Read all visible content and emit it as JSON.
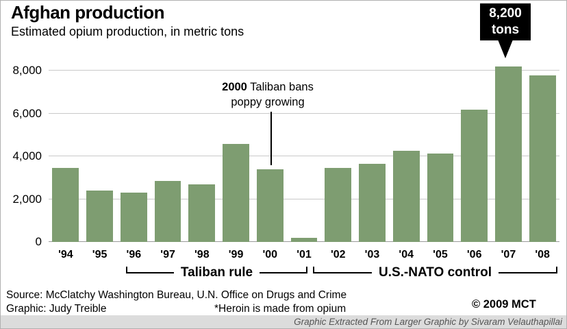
{
  "chart_data": {
    "type": "bar",
    "title": "Afghan production",
    "subtitle": "Estimated opium production, in metric tons",
    "categories": [
      "'94",
      "'95",
      "'96",
      "'97",
      "'98",
      "'99",
      "'00",
      "'01",
      "'02",
      "'03",
      "'04",
      "'05",
      "'06",
      "'07",
      "'08"
    ],
    "values": [
      3450,
      2400,
      2300,
      2850,
      2700,
      4600,
      3400,
      200,
      3450,
      3650,
      4250,
      4150,
      6200,
      8200,
      7800
    ],
    "bar_color": "#7e9d71",
    "ylim": [
      0,
      8400
    ],
    "yticks": [
      0,
      2000,
      4000,
      6000,
      8000
    ],
    "ytick_labels": [
      "0",
      "2,000",
      "4,000",
      "6,000",
      "8,000"
    ],
    "grid": "horizontal",
    "legend": "none",
    "annotations": {
      "taliban_ban": {
        "year": "2000",
        "line1": "Taliban bans",
        "line2": "poppy growing"
      },
      "peak_callout": {
        "line1": "8,200",
        "line2": "tons"
      }
    },
    "era_brackets": [
      {
        "label": "Taliban rule",
        "span": [
          "'96",
          "'01"
        ]
      },
      {
        "label": "U.S.-NATO control",
        "span": [
          "'02",
          "'08"
        ]
      }
    ]
  },
  "footer": {
    "source": "Source: McClatchy Washington Bureau, U.N. Office on Drugs and Crime",
    "credit": "Graphic: Judy Treible",
    "note": "*Heroin is made from opium",
    "copyright": "© 2009 MCT",
    "extraction_credit": "Graphic Extracted From Larger Graphic by Sivaram Velauthapillai"
  }
}
